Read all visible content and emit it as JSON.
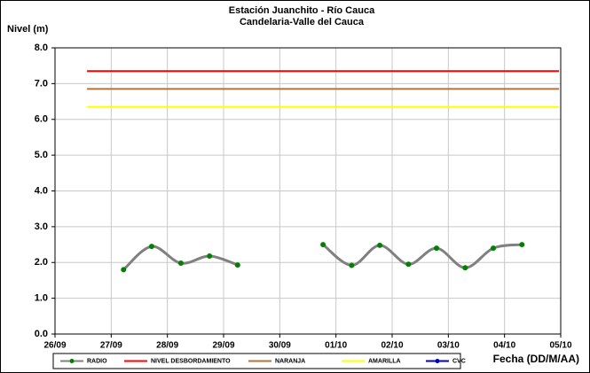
{
  "chart_data": {
    "type": "line",
    "title": "Estación Juanchito - Río Cauca",
    "subtitle": "Candelaria-Valle del Cauca",
    "y_label": "Nivel (m)",
    "x_label": "Fecha (DD/M/AA)",
    "xlim": [
      0,
      9
    ],
    "xticks": [
      {
        "value": 0,
        "label": "26/09"
      },
      {
        "value": 1,
        "label": "27/09"
      },
      {
        "value": 2,
        "label": "28/09"
      },
      {
        "value": 3,
        "label": "29/09"
      },
      {
        "value": 4,
        "label": "30/09"
      },
      {
        "value": 5,
        "label": "01/10"
      },
      {
        "value": 6,
        "label": "02/10"
      },
      {
        "value": 7,
        "label": "03/10"
      },
      {
        "value": 8,
        "label": "04/10"
      },
      {
        "value": 9,
        "label": "05/10"
      }
    ],
    "ylim": [
      0,
      8
    ],
    "yticks": [
      {
        "value": 0,
        "label": "0.0"
      },
      {
        "value": 1,
        "label": "1.0"
      },
      {
        "value": 2,
        "label": "2.0"
      },
      {
        "value": 3,
        "label": "3.0"
      },
      {
        "value": 4,
        "label": "4.0"
      },
      {
        "value": 5,
        "label": "5.0"
      },
      {
        "value": 6,
        "label": "6.0"
      },
      {
        "value": 7,
        "label": "7.0"
      },
      {
        "value": 8,
        "label": "8.0"
      }
    ],
    "grid": true,
    "legend": "bottom",
    "series": [
      {
        "name": "RADIO",
        "color": "#808080",
        "marker_color": "#008000",
        "smooth": true,
        "x": [
          1.22,
          1.72,
          2.24,
          2.75,
          3.25,
          null,
          4.77,
          5.28,
          5.78,
          6.29,
          6.79,
          7.3,
          7.8,
          8.31
        ],
        "values": [
          1.8,
          2.45,
          1.98,
          2.18,
          1.93,
          null,
          2.5,
          1.92,
          2.48,
          1.95,
          2.4,
          1.85,
          2.4,
          2.5
        ]
      },
      {
        "name": "NIVEL DESBORDAMIENTO",
        "color": "#ff0000",
        "x": [
          0.57,
          8.97
        ],
        "values": [
          7.35,
          7.35
        ]
      },
      {
        "name": "NARANJA",
        "color": "#b5733a",
        "x": [
          0.57,
          8.97
        ],
        "values": [
          6.85,
          6.85
        ]
      },
      {
        "name": "AMARILLA",
        "color": "#ffff00",
        "x": [
          0.57,
          8.97
        ],
        "values": [
          6.35,
          6.35
        ]
      },
      {
        "name": "CVC",
        "color": "#0000cc",
        "marker_color": "#0000cc",
        "x": [],
        "values": []
      }
    ]
  }
}
